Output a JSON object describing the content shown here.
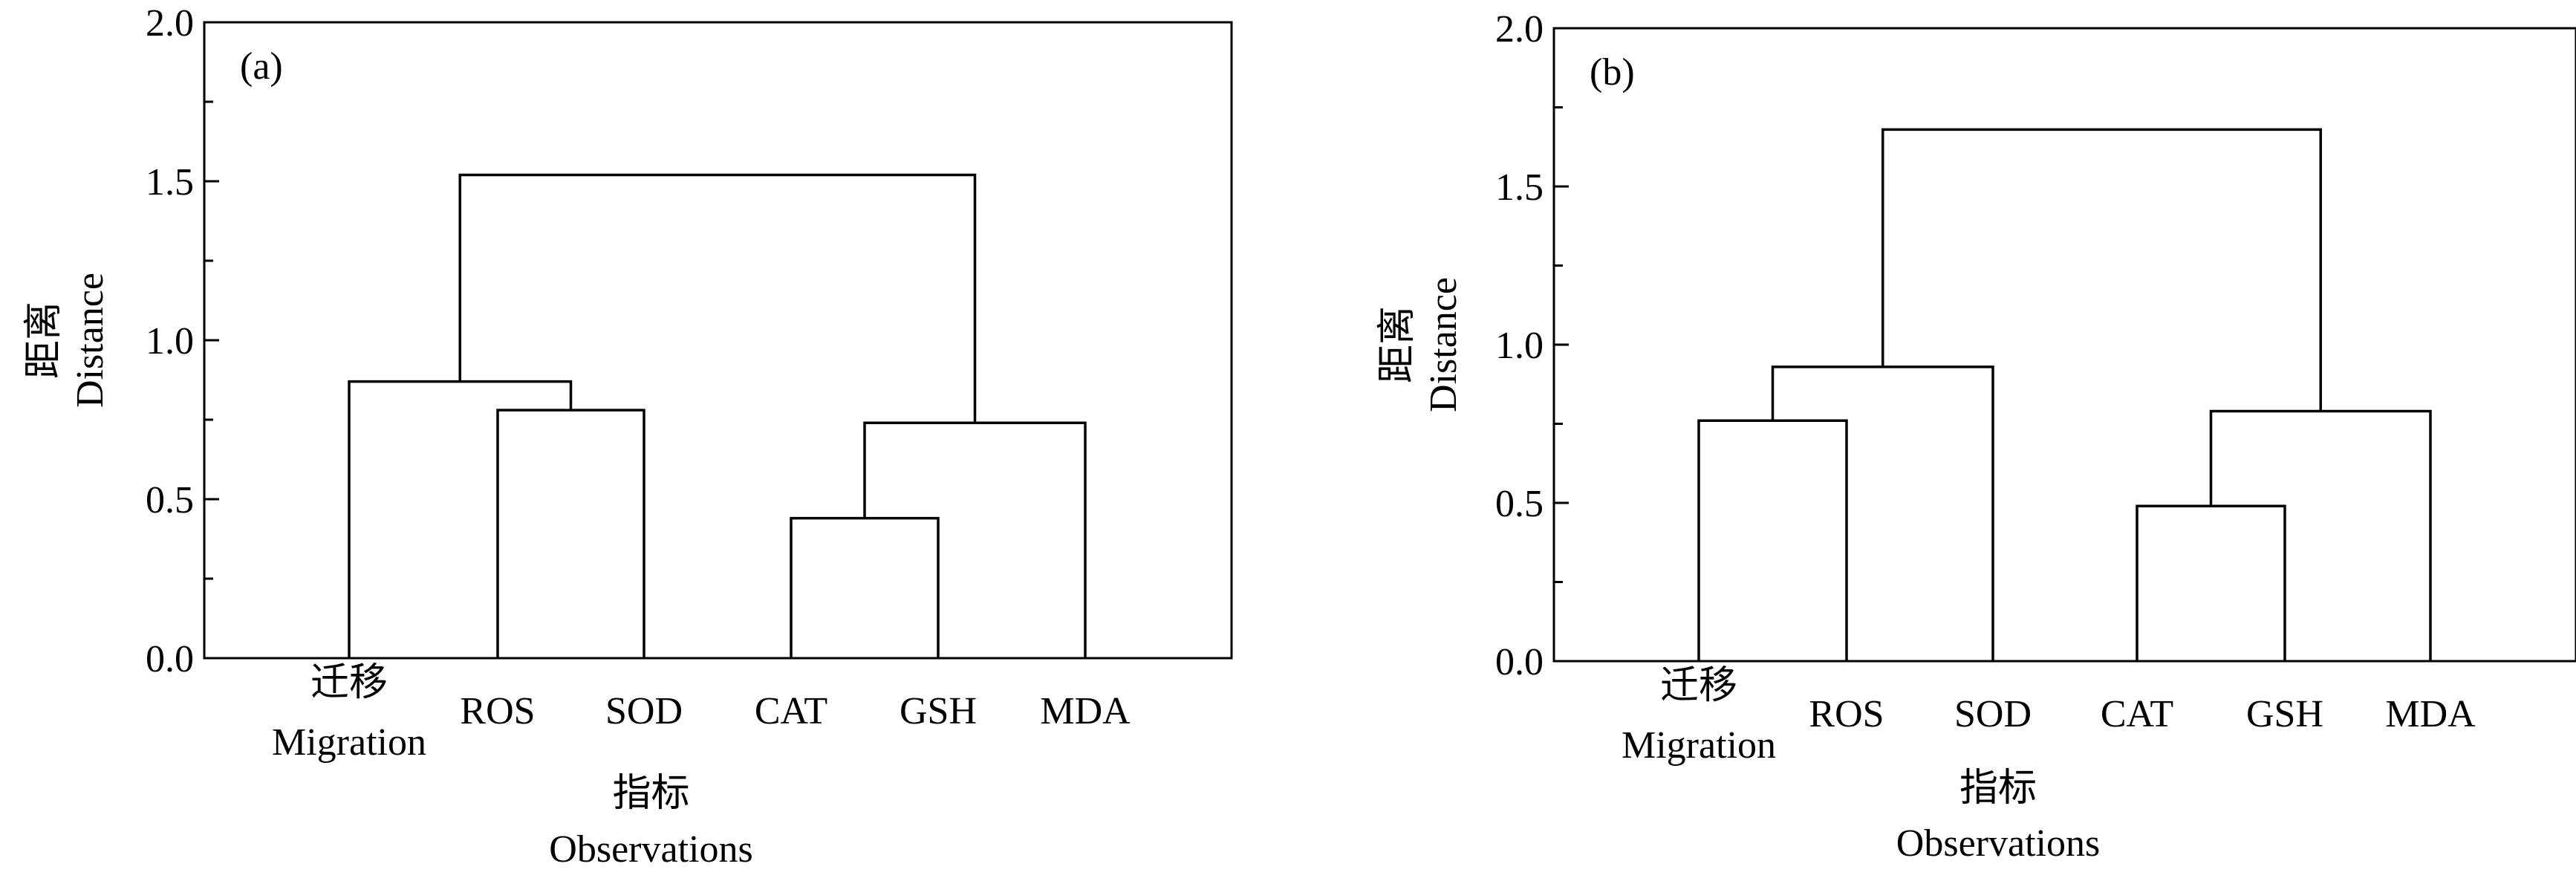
{
  "chart_data": [
    {
      "type": "dendrogram",
      "panel_label": "(a)",
      "ylabel_cn": "距离",
      "ylabel_en": "Distance",
      "xlabel_cn": "指标",
      "xlabel_en": "Observations",
      "ylim": [
        0,
        2.0
      ],
      "yticks": [
        "0.0",
        "0.5",
        "1.0",
        "1.5",
        "2.0"
      ],
      "leaves": [
        {
          "cn": "迁移",
          "en": "Migration"
        },
        {
          "cn": "",
          "en": "ROS"
        },
        {
          "cn": "",
          "en": "SOD"
        },
        {
          "cn": "",
          "en": "CAT"
        },
        {
          "cn": "",
          "en": "GSH"
        },
        {
          "cn": "",
          "en": "MDA"
        }
      ],
      "merges": [
        {
          "left": "L1",
          "right": "L2",
          "height": 0.78
        },
        {
          "left": "L3",
          "right": "L4",
          "height": 0.44
        },
        {
          "left": "M1",
          "right": "L5",
          "height": 0.74
        },
        {
          "left": "L0",
          "right": "M0",
          "height": 0.87
        },
        {
          "left": "M3",
          "right": "M2",
          "height": 1.52
        }
      ]
    },
    {
      "type": "dendrogram",
      "panel_label": "(b)",
      "ylabel_cn": "距离",
      "ylabel_en": "Distance",
      "xlabel_cn": "指标",
      "xlabel_en": "Observations",
      "ylim": [
        0,
        2.0
      ],
      "yticks": [
        "0.0",
        "0.5",
        "1.0",
        "1.5",
        "2.0"
      ],
      "leaves": [
        {
          "cn": "迁移",
          "en": "Migration"
        },
        {
          "cn": "",
          "en": "ROS"
        },
        {
          "cn": "",
          "en": "SOD"
        },
        {
          "cn": "",
          "en": "CAT"
        },
        {
          "cn": "",
          "en": "GSH"
        },
        {
          "cn": "",
          "en": "MDA"
        }
      ],
      "merges": [
        {
          "left": "L0",
          "right": "L1",
          "height": 0.76
        },
        {
          "left": "M0",
          "right": "L2",
          "height": 0.93
        },
        {
          "left": "L3",
          "right": "L4",
          "height": 0.49
        },
        {
          "left": "M2",
          "right": "L5",
          "height": 0.79
        },
        {
          "left": "M1",
          "right": "M3",
          "height": 1.68
        }
      ]
    }
  ]
}
